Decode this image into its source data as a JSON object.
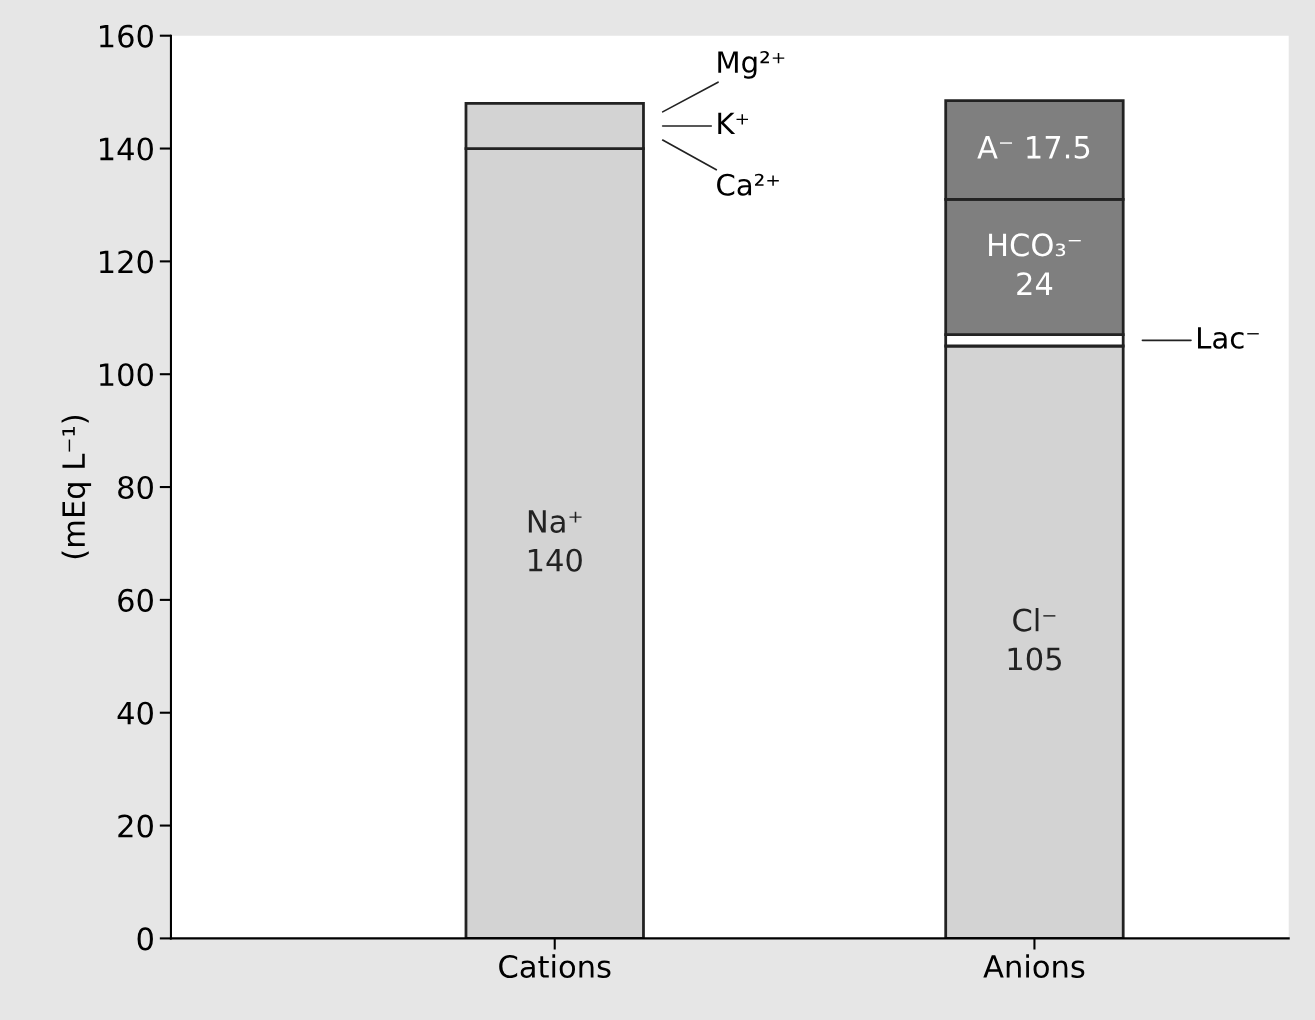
{
  "chart_data": {
    "type": "bar",
    "stacked": true,
    "ylabel": "(mEq L⁻¹)",
    "categories": [
      "Cations",
      "Anions"
    ],
    "series": [
      {
        "colors": [
          "#d3d3d3",
          "#d3d3d3"
        ],
        "values": [
          140,
          105
        ],
        "value_labels": [
          "Na⁺\n140",
          "Cl⁻\n105"
        ]
      },
      {
        "colors": [
          "#d3d3d3",
          "#ffffff"
        ],
        "values": [
          8,
          2
        ]
      },
      {
        "colors": [
          null,
          "#7f7f7f"
        ],
        "values": [
          null,
          24
        ],
        "value_labels": [
          null,
          "HCO₃⁻\n24"
        ]
      },
      {
        "colors": [
          null,
          "#7f7f7f"
        ],
        "values": [
          null,
          17.5
        ],
        "value_labels": [
          null,
          "A⁻ 17.5"
        ]
      }
    ],
    "annotations": [
      "Mg²⁺",
      "K⁺",
      "Ca²⁺",
      "Lac⁻"
    ],
    "ylim": [
      0,
      160
    ],
    "yticks": [
      0,
      20,
      40,
      60,
      80,
      100,
      120,
      140,
      160
    ],
    "grid": false
  }
}
